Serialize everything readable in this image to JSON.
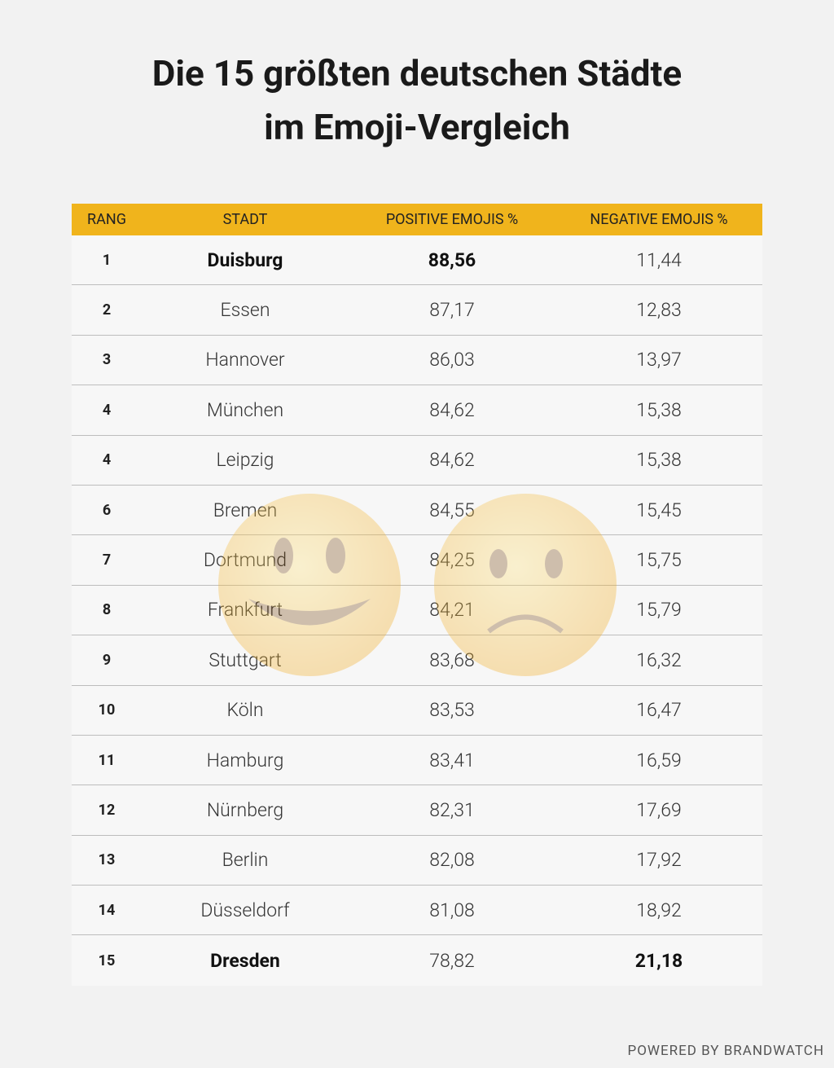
{
  "header": {
    "title": [
      "Die 15 größten deutschen Städte",
      "im Emoji-Vergleich"
    ]
  },
  "table": {
    "columns": [
      "RANG",
      "STADT",
      "POSITIVE EMOJIS %",
      "NEGATIVE EMOJIS %"
    ],
    "rows": [
      [
        "1",
        "Duisburg",
        "88,56",
        "11,44"
      ],
      [
        "2",
        "Essen",
        "87,17",
        "12,83"
      ],
      [
        "3",
        "Hannover",
        "86,03",
        "13,97"
      ],
      [
        "4",
        "München",
        "84,62",
        "15,38"
      ],
      [
        "4",
        "Leipzig",
        "84,62",
        "15,38"
      ],
      [
        "6",
        "Bremen",
        "84,55",
        "15,45"
      ],
      [
        "7",
        "Dortmund",
        "84,25",
        "15,75"
      ],
      [
        "8",
        "Frankfurt",
        "84,21",
        "15,79"
      ],
      [
        "9",
        "Stuttgart",
        "83,68",
        "16,32"
      ],
      [
        "10",
        "Köln",
        "83,53",
        "16,47"
      ],
      [
        "11",
        "Hamburg",
        "83,41",
        "16,59"
      ],
      [
        "12",
        "Nürnberg",
        "82,31",
        "17,69"
      ],
      [
        "13",
        "Berlin",
        "82,08",
        "17,92"
      ],
      [
        "14",
        "Düsseldorf",
        "81,08",
        "18,92"
      ],
      [
        "15",
        "Dresden",
        "78,82",
        "21,18"
      ]
    ]
  },
  "footer": {
    "text": "POWERED BY BRANDWATCH"
  }
}
